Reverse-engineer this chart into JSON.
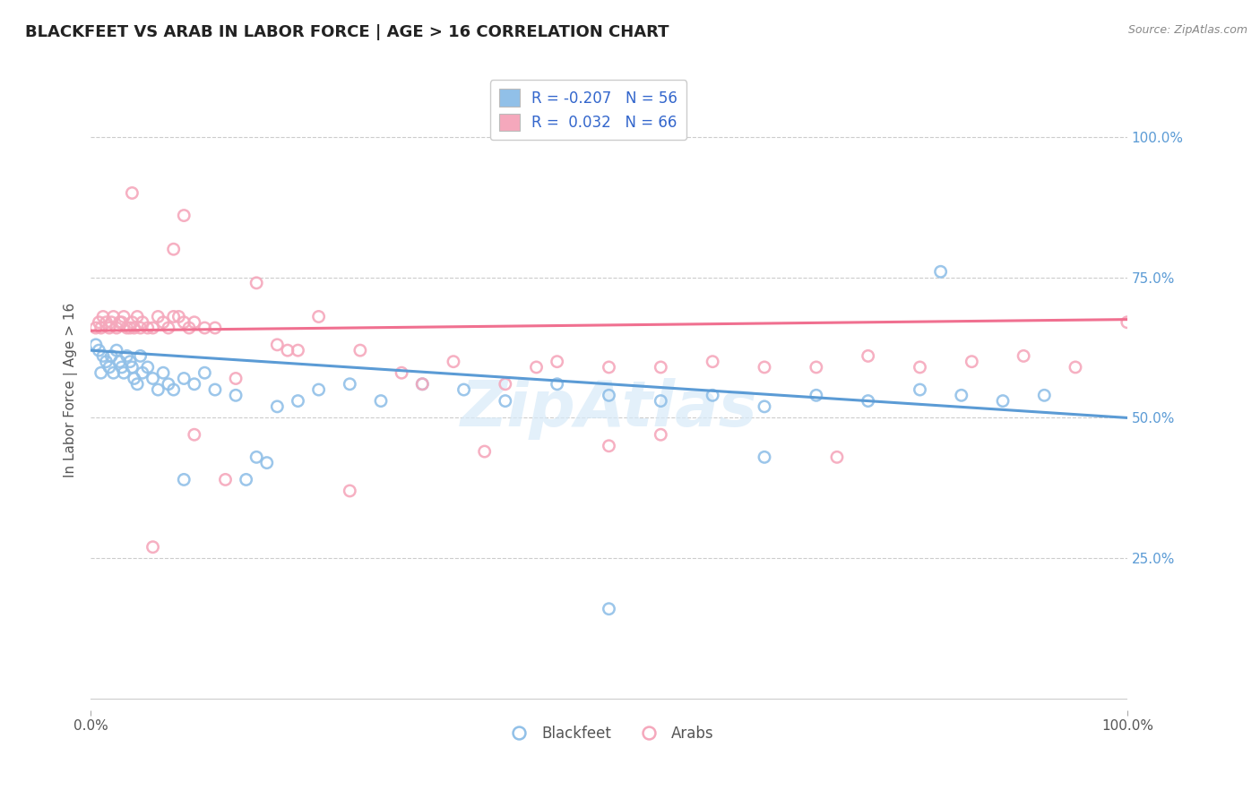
{
  "title": "BLACKFEET VS ARAB IN LABOR FORCE | AGE > 16 CORRELATION CHART",
  "source": "Source: ZipAtlas.com",
  "ylabel": "In Labor Force | Age > 16",
  "xlim": [
    0.0,
    1.0
  ],
  "ylim": [
    -0.02,
    1.12
  ],
  "y_ticks_right": [
    0.25,
    0.5,
    0.75,
    1.0
  ],
  "y_tick_labels_right": [
    "25.0%",
    "50.0%",
    "75.0%",
    "100.0%"
  ],
  "blue_color": "#91C0E8",
  "pink_color": "#F5A8BC",
  "blue_line_color": "#5B9BD5",
  "pink_line_color": "#F07090",
  "legend_blue_label": "R = -0.207   N = 56",
  "legend_pink_label": "R =  0.032   N = 66",
  "legend_title_blue": "Blackfeet",
  "legend_title_pink": "Arabs",
  "R_blue": -0.207,
  "R_pink": 0.032,
  "N_blue": 56,
  "N_pink": 66,
  "watermark": "ZipAtlas",
  "blue_intercept": 0.62,
  "blue_slope": -0.12,
  "pink_intercept": 0.655,
  "pink_slope": 0.02,
  "blue_x": [
    0.005,
    0.008,
    0.01,
    0.012,
    0.015,
    0.018,
    0.02,
    0.022,
    0.025,
    0.028,
    0.03,
    0.032,
    0.035,
    0.038,
    0.04,
    0.042,
    0.045,
    0.048,
    0.05,
    0.055,
    0.06,
    0.065,
    0.07,
    0.075,
    0.08,
    0.09,
    0.1,
    0.11,
    0.12,
    0.14,
    0.16,
    0.18,
    0.2,
    0.22,
    0.25,
    0.28,
    0.32,
    0.36,
    0.4,
    0.45,
    0.5,
    0.55,
    0.6,
    0.65,
    0.7,
    0.75,
    0.8,
    0.84,
    0.88,
    0.92,
    0.15,
    0.17,
    0.09,
    0.5,
    0.65,
    0.82
  ],
  "blue_y": [
    0.63,
    0.62,
    0.58,
    0.61,
    0.6,
    0.59,
    0.61,
    0.58,
    0.62,
    0.6,
    0.59,
    0.58,
    0.61,
    0.6,
    0.59,
    0.57,
    0.56,
    0.61,
    0.58,
    0.59,
    0.57,
    0.55,
    0.58,
    0.56,
    0.55,
    0.57,
    0.56,
    0.58,
    0.55,
    0.54,
    0.43,
    0.52,
    0.53,
    0.55,
    0.56,
    0.53,
    0.56,
    0.55,
    0.53,
    0.56,
    0.54,
    0.53,
    0.54,
    0.52,
    0.54,
    0.53,
    0.55,
    0.54,
    0.53,
    0.54,
    0.39,
    0.42,
    0.39,
    0.16,
    0.43,
    0.76
  ],
  "pink_x": [
    0.005,
    0.008,
    0.01,
    0.012,
    0.015,
    0.018,
    0.02,
    0.022,
    0.025,
    0.028,
    0.03,
    0.032,
    0.035,
    0.038,
    0.04,
    0.042,
    0.045,
    0.048,
    0.05,
    0.055,
    0.06,
    0.065,
    0.07,
    0.075,
    0.08,
    0.085,
    0.09,
    0.095,
    0.1,
    0.11,
    0.12,
    0.14,
    0.16,
    0.18,
    0.2,
    0.22,
    0.26,
    0.3,
    0.35,
    0.4,
    0.45,
    0.5,
    0.55,
    0.6,
    0.65,
    0.7,
    0.75,
    0.8,
    0.85,
    0.9,
    0.95,
    1.0,
    0.55,
    0.25,
    0.13,
    0.06,
    0.08,
    0.09,
    0.5,
    0.43,
    0.38,
    0.32,
    0.72,
    0.04,
    0.1,
    0.19
  ],
  "pink_y": [
    0.66,
    0.67,
    0.66,
    0.68,
    0.67,
    0.66,
    0.67,
    0.68,
    0.66,
    0.67,
    0.67,
    0.68,
    0.66,
    0.66,
    0.67,
    0.66,
    0.68,
    0.66,
    0.67,
    0.66,
    0.66,
    0.68,
    0.67,
    0.66,
    0.68,
    0.68,
    0.67,
    0.66,
    0.67,
    0.66,
    0.66,
    0.57,
    0.74,
    0.63,
    0.62,
    0.68,
    0.62,
    0.58,
    0.6,
    0.56,
    0.6,
    0.59,
    0.47,
    0.6,
    0.59,
    0.59,
    0.61,
    0.59,
    0.6,
    0.61,
    0.59,
    0.67,
    0.59,
    0.37,
    0.39,
    0.27,
    0.8,
    0.86,
    0.45,
    0.59,
    0.44,
    0.56,
    0.43,
    0.9,
    0.47,
    0.62
  ],
  "background_color": "#FFFFFF",
  "grid_color": "#CCCCCC"
}
